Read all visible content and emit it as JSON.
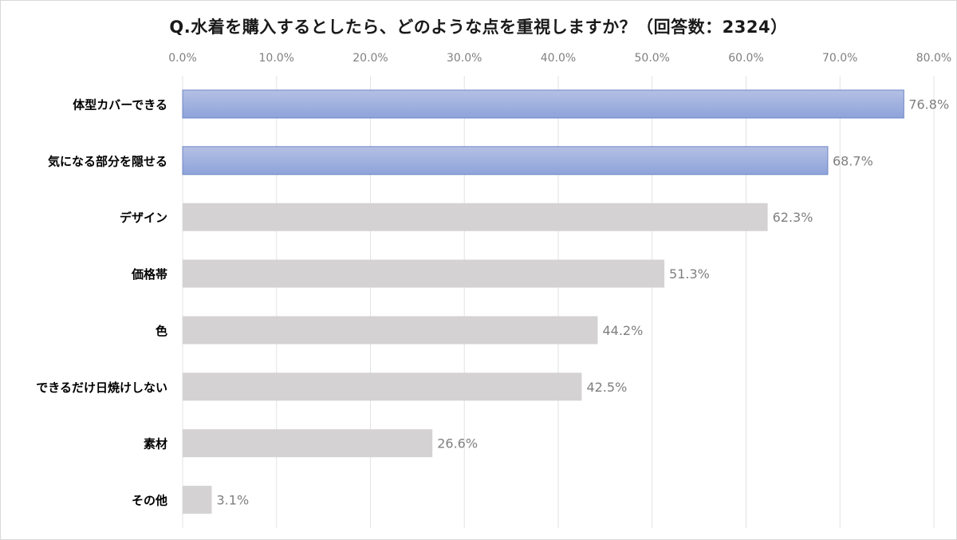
{
  "chart_data": {
    "type": "bar",
    "orientation": "horizontal",
    "title": "Q.水着を購入するとしたら、どのような点を重視しますか？（回答数：2324）",
    "categories": [
      "体型カバーできる",
      "気になる部分を隠せる",
      "デザイン",
      "価格帯",
      "色",
      "できるだけ日焼けしない",
      "素材",
      "その他"
    ],
    "values": [
      76.8,
      68.7,
      62.3,
      51.3,
      44.2,
      42.5,
      26.6,
      3.1
    ],
    "data_labels": [
      "76.8%",
      "68.7%",
      "62.3%",
      "51.3%",
      "44.2%",
      "42.5%",
      "26.6%",
      "3.1%"
    ],
    "highlighted": [
      true,
      true,
      false,
      false,
      false,
      false,
      false,
      false
    ],
    "xlim": [
      0,
      80
    ],
    "xticks": [
      "0.0%",
      "10.0%",
      "20.0%",
      "30.0%",
      "40.0%",
      "50.0%",
      "60.0%",
      "70.0%",
      "80.0%"
    ],
    "x_axis_position": "top",
    "grid": true,
    "colors": {
      "highlight_top": "#b4c0e4",
      "highlight_bottom": "#8ea3da",
      "highlight_border": "#6f86c6",
      "default_fill": "#d4d2d3",
      "gridline": "#e3e3e3"
    }
  }
}
